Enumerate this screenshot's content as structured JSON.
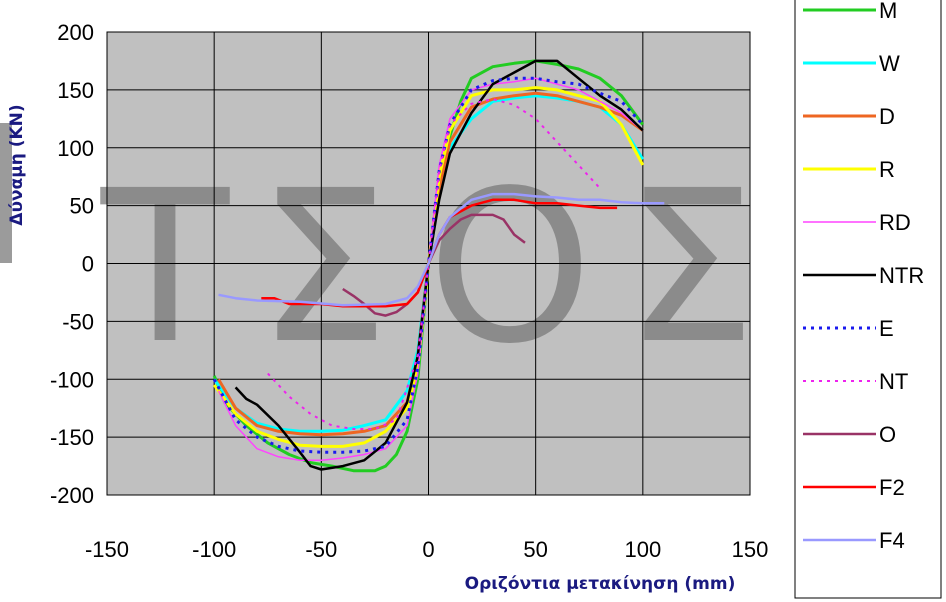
{
  "chart_data": {
    "type": "line",
    "title": "",
    "xlabel": "Οριζόντια μετακίνηση (mm)",
    "ylabel": "Δύναμη (KN)",
    "xlim": [
      -150,
      150
    ],
    "ylim": [
      -200,
      200
    ],
    "xticks": [
      -150,
      -100,
      -50,
      0,
      50,
      100,
      150
    ],
    "yticks": [
      -200,
      -150,
      -100,
      -50,
      0,
      50,
      100,
      150,
      200
    ],
    "grid": true,
    "background": "#c0c0c0",
    "legend_position": "right",
    "watermark": [
      "Τ",
      "Σ",
      "Ο",
      "Σ"
    ],
    "series": [
      {
        "name": "M",
        "color": "#22cc22",
        "dash": false,
        "width": 3,
        "points": [
          [
            -100,
            -97
          ],
          [
            -95,
            -120
          ],
          [
            -85,
            -140
          ],
          [
            -75,
            -155
          ],
          [
            -65,
            -165
          ],
          [
            -55,
            -172
          ],
          [
            -45,
            -175
          ],
          [
            -35,
            -179
          ],
          [
            -25,
            -179
          ],
          [
            -20,
            -175
          ],
          [
            -15,
            -165
          ],
          [
            -10,
            -145
          ],
          [
            -5,
            -100
          ],
          [
            0,
            0
          ],
          [
            5,
            60
          ],
          [
            10,
            110
          ],
          [
            15,
            140
          ],
          [
            20,
            160
          ],
          [
            30,
            170
          ],
          [
            40,
            173
          ],
          [
            50,
            175
          ],
          [
            60,
            172
          ],
          [
            70,
            168
          ],
          [
            80,
            160
          ],
          [
            90,
            145
          ],
          [
            100,
            120
          ]
        ]
      },
      {
        "name": "W",
        "color": "#00ffff",
        "dash": false,
        "width": 3,
        "points": [
          [
            -100,
            -100
          ],
          [
            -90,
            -125
          ],
          [
            -80,
            -138
          ],
          [
            -70,
            -143
          ],
          [
            -60,
            -145
          ],
          [
            -50,
            -145
          ],
          [
            -40,
            -144
          ],
          [
            -30,
            -140
          ],
          [
            -20,
            -135
          ],
          [
            -10,
            -110
          ],
          [
            -5,
            -75
          ],
          [
            0,
            0
          ],
          [
            5,
            60
          ],
          [
            10,
            100
          ],
          [
            20,
            125
          ],
          [
            30,
            140
          ],
          [
            40,
            143
          ],
          [
            50,
            145
          ],
          [
            60,
            143
          ],
          [
            70,
            140
          ],
          [
            80,
            135
          ],
          [
            90,
            120
          ],
          [
            100,
            90
          ]
        ]
      },
      {
        "name": "D",
        "color": "#ee6622",
        "dash": false,
        "width": 3,
        "points": [
          [
            -98,
            -100
          ],
          [
            -90,
            -125
          ],
          [
            -80,
            -140
          ],
          [
            -70,
            -145
          ],
          [
            -60,
            -147
          ],
          [
            -50,
            -148
          ],
          [
            -40,
            -147
          ],
          [
            -30,
            -145
          ],
          [
            -20,
            -140
          ],
          [
            -10,
            -120
          ],
          [
            -5,
            -80
          ],
          [
            0,
            0
          ],
          [
            5,
            65
          ],
          [
            10,
            105
          ],
          [
            20,
            135
          ],
          [
            30,
            142
          ],
          [
            40,
            145
          ],
          [
            50,
            147
          ],
          [
            60,
            145
          ],
          [
            70,
            140
          ],
          [
            80,
            135
          ],
          [
            90,
            128
          ],
          [
            100,
            115
          ]
        ]
      },
      {
        "name": "R",
        "color": "#ffff00",
        "dash": false,
        "width": 3,
        "points": [
          [
            -100,
            -105
          ],
          [
            -90,
            -130
          ],
          [
            -80,
            -145
          ],
          [
            -70,
            -152
          ],
          [
            -60,
            -157
          ],
          [
            -50,
            -158
          ],
          [
            -40,
            -158
          ],
          [
            -30,
            -155
          ],
          [
            -20,
            -145
          ],
          [
            -10,
            -125
          ],
          [
            -5,
            -90
          ],
          [
            0,
            0
          ],
          [
            5,
            75
          ],
          [
            10,
            115
          ],
          [
            20,
            145
          ],
          [
            30,
            150
          ],
          [
            40,
            150
          ],
          [
            50,
            152
          ],
          [
            60,
            150
          ],
          [
            70,
            145
          ],
          [
            80,
            140
          ],
          [
            90,
            120
          ],
          [
            100,
            85
          ]
        ]
      },
      {
        "name": "RD",
        "color": "#ff44ff",
        "dash": false,
        "width": 1.5,
        "points": [
          [
            -98,
            -110
          ],
          [
            -90,
            -140
          ],
          [
            -80,
            -160
          ],
          [
            -70,
            -167
          ],
          [
            -60,
            -170
          ],
          [
            -50,
            -170
          ],
          [
            -40,
            -168
          ],
          [
            -30,
            -165
          ],
          [
            -20,
            -160
          ],
          [
            -10,
            -140
          ],
          [
            -5,
            -95
          ],
          [
            0,
            0
          ],
          [
            5,
            85
          ],
          [
            10,
            125
          ],
          [
            20,
            150
          ],
          [
            30,
            155
          ],
          [
            40,
            157
          ],
          [
            50,
            160
          ],
          [
            60,
            155
          ],
          [
            70,
            150
          ],
          [
            80,
            140
          ],
          [
            90,
            130
          ],
          [
            100,
            115
          ]
        ]
      },
      {
        "name": "NTR",
        "color": "#000000",
        "dash": false,
        "width": 2.5,
        "points": [
          [
            -90,
            -107
          ],
          [
            -85,
            -117
          ],
          [
            -80,
            -122
          ],
          [
            -70,
            -140
          ],
          [
            -60,
            -163
          ],
          [
            -55,
            -175
          ],
          [
            -50,
            -178
          ],
          [
            -40,
            -175
          ],
          [
            -30,
            -170
          ],
          [
            -20,
            -155
          ],
          [
            -10,
            -120
          ],
          [
            -5,
            -80
          ],
          [
            0,
            0
          ],
          [
            5,
            55
          ],
          [
            10,
            95
          ],
          [
            20,
            130
          ],
          [
            30,
            155
          ],
          [
            40,
            165
          ],
          [
            50,
            175
          ],
          [
            60,
            175
          ],
          [
            70,
            160
          ],
          [
            80,
            145
          ],
          [
            90,
            133
          ],
          [
            100,
            115
          ]
        ]
      },
      {
        "name": "E",
        "color": "#1a1aee",
        "dash": true,
        "width": 3,
        "points": [
          [
            -100,
            -100
          ],
          [
            -90,
            -135
          ],
          [
            -80,
            -150
          ],
          [
            -70,
            -158
          ],
          [
            -60,
            -162
          ],
          [
            -50,
            -163
          ],
          [
            -40,
            -163
          ],
          [
            -30,
            -162
          ],
          [
            -20,
            -158
          ],
          [
            -10,
            -135
          ],
          [
            -5,
            -90
          ],
          [
            0,
            0
          ],
          [
            5,
            80
          ],
          [
            10,
            120
          ],
          [
            20,
            150
          ],
          [
            30,
            158
          ],
          [
            40,
            160
          ],
          [
            50,
            160
          ],
          [
            60,
            157
          ],
          [
            70,
            155
          ],
          [
            80,
            147
          ],
          [
            90,
            140
          ],
          [
            100,
            120
          ]
        ]
      },
      {
        "name": "NT",
        "color": "#ee22ee",
        "dash": true,
        "width": 2,
        "points": [
          [
            -75,
            -95
          ],
          [
            -65,
            -115
          ],
          [
            -55,
            -130
          ],
          [
            -45,
            -140
          ],
          [
            -35,
            -143
          ],
          [
            -25,
            -143
          ],
          [
            -15,
            -135
          ],
          [
            -5,
            -80
          ],
          [
            0,
            0
          ],
          [
            5,
            80
          ],
          [
            10,
            120
          ],
          [
            20,
            138
          ],
          [
            30,
            142
          ],
          [
            40,
            137
          ],
          [
            50,
            125
          ],
          [
            60,
            105
          ],
          [
            70,
            85
          ],
          [
            80,
            65
          ]
        ]
      },
      {
        "name": "O",
        "color": "#993366",
        "dash": false,
        "width": 2.5,
        "points": [
          [
            -40,
            -22
          ],
          [
            -35,
            -28
          ],
          [
            -30,
            -35
          ],
          [
            -25,
            -43
          ],
          [
            -20,
            -45
          ],
          [
            -15,
            -42
          ],
          [
            -10,
            -35
          ],
          [
            -5,
            -25
          ],
          [
            0,
            0
          ],
          [
            5,
            20
          ],
          [
            10,
            30
          ],
          [
            15,
            38
          ],
          [
            20,
            42
          ],
          [
            30,
            42
          ],
          [
            35,
            38
          ],
          [
            40,
            25
          ],
          [
            45,
            18
          ]
        ]
      },
      {
        "name": "F2",
        "color": "#ff0000",
        "dash": false,
        "width": 2.5,
        "points": [
          [
            -78,
            -30
          ],
          [
            -72,
            -30
          ],
          [
            -65,
            -35
          ],
          [
            -50,
            -35
          ],
          [
            -40,
            -37
          ],
          [
            -30,
            -37
          ],
          [
            -20,
            -37
          ],
          [
            -10,
            -35
          ],
          [
            -5,
            -25
          ],
          [
            0,
            0
          ],
          [
            5,
            25
          ],
          [
            10,
            40
          ],
          [
            20,
            50
          ],
          [
            30,
            55
          ],
          [
            40,
            55
          ],
          [
            50,
            52
          ],
          [
            60,
            52
          ],
          [
            70,
            50
          ],
          [
            80,
            48
          ],
          [
            88,
            48
          ]
        ]
      },
      {
        "name": "F4",
        "color": "#9999ff",
        "dash": false,
        "width": 2.5,
        "points": [
          [
            -98,
            -27
          ],
          [
            -90,
            -30
          ],
          [
            -80,
            -32
          ],
          [
            -60,
            -33
          ],
          [
            -40,
            -36
          ],
          [
            -20,
            -35
          ],
          [
            -10,
            -30
          ],
          [
            -5,
            -20
          ],
          [
            0,
            0
          ],
          [
            5,
            25
          ],
          [
            10,
            40
          ],
          [
            20,
            55
          ],
          [
            30,
            60
          ],
          [
            40,
            60
          ],
          [
            50,
            58
          ],
          [
            60,
            57
          ],
          [
            70,
            55
          ],
          [
            80,
            55
          ],
          [
            90,
            53
          ],
          [
            100,
            52
          ],
          [
            110,
            52
          ]
        ]
      }
    ]
  }
}
